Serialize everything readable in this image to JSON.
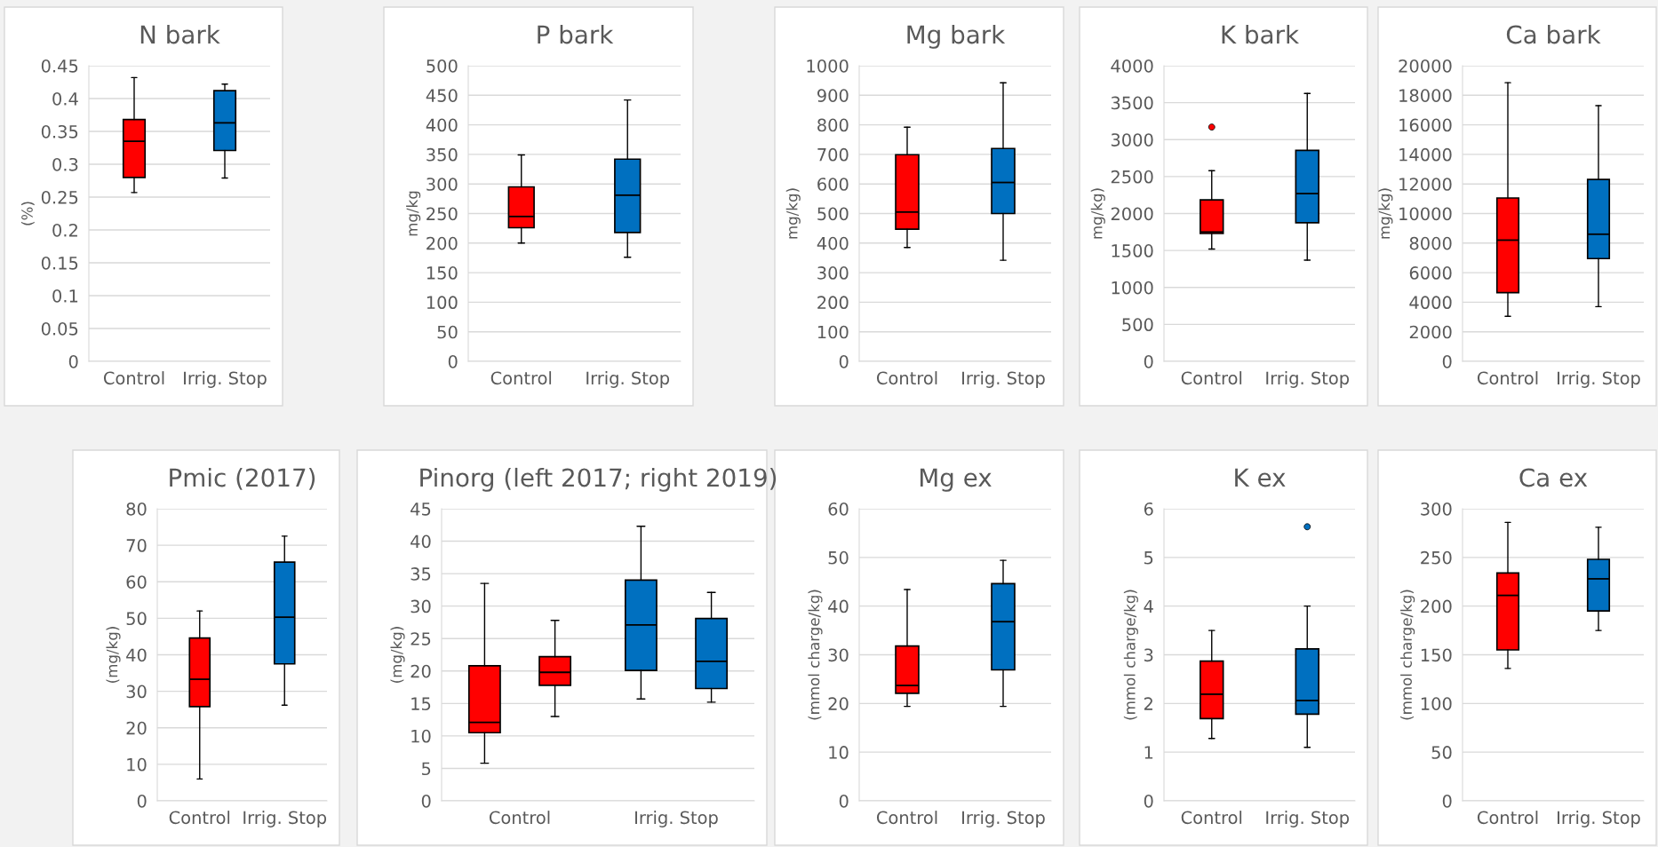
{
  "chart_data": [
    {
      "type": "box",
      "title": "N bark",
      "ylabel": "(%)",
      "categories": [
        "Control",
        "Irrig. Stop"
      ],
      "ylim": [
        0,
        0.45
      ],
      "yticks": [
        0,
        0.05,
        0.1,
        0.15,
        0.2,
        0.25,
        0.3,
        0.35,
        0.4,
        0.45
      ],
      "grid": "y",
      "series": [
        {
          "colors": [
            "#ff0000",
            "#0070c0"
          ],
          "boxes": [
            {
              "low": 0.257,
              "q1": 0.28,
              "median": 0.335,
              "q3": 0.368,
              "high": 0.432
            },
            {
              "low": 0.279,
              "q1": 0.321,
              "median": 0.363,
              "q3": 0.412,
              "high": 0.422
            }
          ]
        }
      ]
    },
    {
      "type": "box",
      "title": "P bark",
      "ylabel": "mg/kg",
      "categories": [
        "Control",
        "Irrig. Stop"
      ],
      "ylim": [
        0,
        500
      ],
      "yticks": [
        0,
        50,
        100,
        150,
        200,
        250,
        300,
        350,
        400,
        450,
        500
      ],
      "grid": "y",
      "series": [
        {
          "colors": [
            "#ff0000",
            "#0070c0"
          ],
          "boxes": [
            {
              "low": 200,
              "q1": 226,
              "median": 245,
              "q3": 295,
              "high": 349
            },
            {
              "low": 176,
              "q1": 218,
              "median": 281,
              "q3": 342,
              "high": 442
            }
          ]
        }
      ]
    },
    {
      "type": "box",
      "title": "Mg bark",
      "ylabel": "mg/kg)",
      "categories": [
        "Control",
        "Irrig. Stop"
      ],
      "ylim": [
        0,
        1000
      ],
      "yticks": [
        0,
        100,
        200,
        300,
        400,
        500,
        600,
        700,
        800,
        900,
        1000
      ],
      "grid": "y",
      "series": [
        {
          "colors": [
            "#ff0000",
            "#0070c0"
          ],
          "boxes": [
            {
              "low": 385,
              "q1": 447,
              "median": 505,
              "q3": 699,
              "high": 792
            },
            {
              "low": 342,
              "q1": 500,
              "median": 605,
              "q3": 720,
              "high": 942
            }
          ]
        }
      ]
    },
    {
      "type": "box",
      "title": "K bark",
      "ylabel": "mg/kg)",
      "categories": [
        "Control",
        "Irrig. Stop"
      ],
      "ylim": [
        0,
        4000
      ],
      "yticks": [
        0,
        500,
        1000,
        1500,
        2000,
        2500,
        3000,
        3500,
        4000
      ],
      "grid": "y",
      "series": [
        {
          "colors": [
            "#ff0000",
            "#0070c0"
          ],
          "boxes": [
            {
              "low": 1520,
              "q1": 1730,
              "median": 1750,
              "q3": 2185,
              "high": 2580,
              "outliers": [
                3170
              ]
            },
            {
              "low": 1370,
              "q1": 1875,
              "median": 2270,
              "q3": 2855,
              "high": 3625
            }
          ]
        }
      ]
    },
    {
      "type": "box",
      "title": "Ca bark",
      "ylabel": "mg/kg)",
      "categories": [
        "Control",
        "Irrig. Stop"
      ],
      "ylim": [
        0,
        20000
      ],
      "yticks": [
        0,
        2000,
        4000,
        6000,
        8000,
        10000,
        12000,
        14000,
        16000,
        18000,
        20000
      ],
      "grid": "y",
      "series": [
        {
          "colors": [
            "#ff0000",
            "#0070c0"
          ],
          "boxes": [
            {
              "low": 3050,
              "q1": 4650,
              "median": 8200,
              "q3": 11050,
              "high": 18850
            },
            {
              "low": 3700,
              "q1": 6950,
              "median": 8600,
              "q3": 12300,
              "high": 17300
            }
          ]
        }
      ]
    },
    {
      "type": "box",
      "title": "Pmic (2017)",
      "ylabel": "(mg/kg)",
      "categories": [
        "Control",
        "Irrig. Stop"
      ],
      "ylim": [
        0,
        80
      ],
      "yticks": [
        0,
        10,
        20,
        30,
        40,
        50,
        60,
        70,
        80
      ],
      "grid": "y",
      "series": [
        {
          "colors": [
            "#ff0000",
            "#0070c0"
          ],
          "boxes": [
            {
              "low": 6,
              "q1": 25.8,
              "median": 33.3,
              "q3": 44.6,
              "high": 52
            },
            {
              "low": 26.2,
              "q1": 37.5,
              "median": 50.3,
              "q3": 65.4,
              "high": 72.5
            }
          ]
        }
      ]
    },
    {
      "type": "box",
      "title": "Pinorg (left 2017; right 2019)",
      "ylabel": "(mg/kg)",
      "categories": [
        "Control",
        "Irrig. Stop"
      ],
      "ylim": [
        0,
        45
      ],
      "yticks": [
        0,
        5,
        10,
        15,
        20,
        25,
        30,
        35,
        40,
        45
      ],
      "grid": "y",
      "series": [
        {
          "colors": [
            "#ff0000",
            "#0070c0"
          ],
          "boxes": [
            {
              "low": 5.8,
              "q1": 10.5,
              "median": 12.1,
              "q3": 20.8,
              "high": 33.5
            },
            {
              "low": 15.7,
              "q1": 20.1,
              "median": 27.1,
              "q3": 34.0,
              "high": 42.3
            }
          ]
        },
        {
          "colors": [
            "#ff0000",
            "#0070c0"
          ],
          "boxes": [
            {
              "low": 13.0,
              "q1": 17.8,
              "median": 19.8,
              "q3": 22.2,
              "high": 27.8
            },
            {
              "low": 15.2,
              "q1": 17.3,
              "median": 21.5,
              "q3": 28.1,
              "high": 32.1
            }
          ]
        }
      ]
    },
    {
      "type": "box",
      "title": "Mg ex",
      "ylabel": "(mmol charge/kg)",
      "categories": [
        "Control",
        "Irrig. Stop"
      ],
      "ylim": [
        0,
        60
      ],
      "yticks": [
        0,
        10,
        20,
        30,
        40,
        50,
        60
      ],
      "grid": "y",
      "series": [
        {
          "colors": [
            "#ff0000",
            "#0070c0"
          ],
          "boxes": [
            {
              "low": 19.4,
              "q1": 22.1,
              "median": 23.7,
              "q3": 31.8,
              "high": 43.4
            },
            {
              "low": 19.4,
              "q1": 26.9,
              "median": 36.8,
              "q3": 44.6,
              "high": 49.4
            }
          ]
        }
      ]
    },
    {
      "type": "box",
      "title": "K ex",
      "ylabel": "(mmol charge/kg)",
      "categories": [
        "Control",
        "Irrig. Stop"
      ],
      "ylim": [
        0,
        6
      ],
      "yticks": [
        0,
        1,
        2,
        3,
        4,
        5,
        6
      ],
      "grid": "y",
      "series": [
        {
          "colors": [
            "#ff0000",
            "#0070c0"
          ],
          "boxes": [
            {
              "low": 1.28,
              "q1": 1.69,
              "median": 2.19,
              "q3": 2.87,
              "high": 3.5
            },
            {
              "low": 1.1,
              "q1": 1.78,
              "median": 2.06,
              "q3": 3.12,
              "high": 4.0,
              "outliers": [
                5.63
              ]
            }
          ]
        }
      ]
    },
    {
      "type": "box",
      "title": "Ca ex",
      "ylabel": "(mmol charge/kg)",
      "categories": [
        "Control",
        "Irrig. Stop"
      ],
      "ylim": [
        0,
        300
      ],
      "yticks": [
        0,
        50,
        100,
        150,
        200,
        250,
        300
      ],
      "grid": "y",
      "series": [
        {
          "colors": [
            "#ff0000",
            "#0070c0"
          ],
          "boxes": [
            {
              "low": 136,
              "q1": 155,
              "median": 211,
              "q3": 234,
              "high": 286
            },
            {
              "low": 175,
              "q1": 195,
              "median": 228,
              "q3": 248,
              "high": 281
            }
          ]
        }
      ]
    }
  ]
}
